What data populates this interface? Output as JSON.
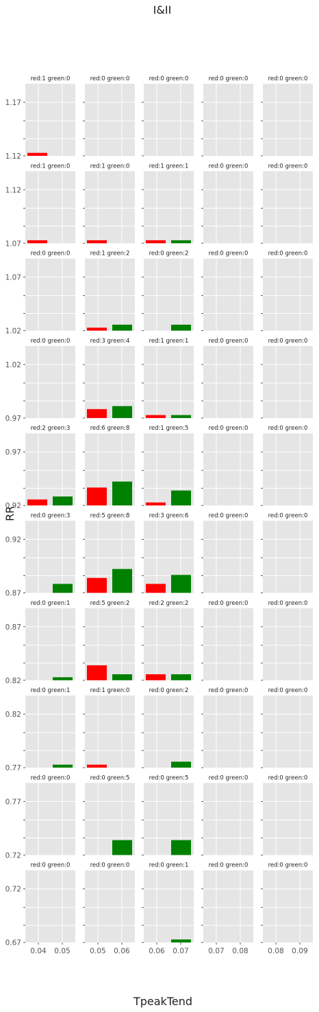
{
  "figure": {
    "title": "I&II",
    "xlabel": "TpeakTend",
    "ylabel": "RR"
  },
  "chart_data": {
    "type": "bar",
    "title": "I&II",
    "xlabel": "TpeakTend",
    "ylabel": "RR",
    "grid": true,
    "colors": {
      "red": "#ff0000",
      "green": "#008000",
      "panel_bg": "#e5e5e5",
      "grid": "#ffffff"
    },
    "columns": [
      {
        "x_ticks": [
          "0.04",
          "0.05"
        ]
      },
      {
        "x_ticks": [
          "0.05",
          "0.06"
        ]
      },
      {
        "x_ticks": [
          "0.06",
          "0.07"
        ]
      },
      {
        "x_ticks": [
          "0.07",
          "0.08"
        ]
      },
      {
        "x_ticks": [
          "0.08",
          "0.09"
        ]
      }
    ],
    "rows": [
      {
        "y_ticks": [
          "1.17",
          "1.12"
        ],
        "panels": [
          {
            "label": "red:1 green:0",
            "red": 1,
            "green": 0
          },
          {
            "label": "red:0 green:0",
            "red": 0,
            "green": 0
          },
          {
            "label": "red:0 green:0",
            "red": 0,
            "green": 0
          },
          {
            "label": "red:0 green:0",
            "red": 0,
            "green": 0
          },
          {
            "label": "red:0 green:0",
            "red": 0,
            "green": 0
          }
        ]
      },
      {
        "y_ticks": [
          "1.12",
          "1.07"
        ],
        "panels": [
          {
            "label": "red:1 green:0",
            "red": 1,
            "green": 0
          },
          {
            "label": "red:1 green:0",
            "red": 1,
            "green": 0
          },
          {
            "label": "red:1 green:1",
            "red": 1,
            "green": 1
          },
          {
            "label": "red:0 green:0",
            "red": 0,
            "green": 0
          },
          {
            "label": "red:0 green:0",
            "red": 0,
            "green": 0
          }
        ]
      },
      {
        "y_ticks": [
          "1.07",
          "1.02"
        ],
        "panels": [
          {
            "label": "red:0 green:0",
            "red": 0,
            "green": 0
          },
          {
            "label": "red:1 green:2",
            "red": 1,
            "green": 2
          },
          {
            "label": "red:0 green:2",
            "red": 0,
            "green": 2
          },
          {
            "label": "red:0 green:0",
            "red": 0,
            "green": 0
          },
          {
            "label": "red:0 green:0",
            "red": 0,
            "green": 0
          }
        ]
      },
      {
        "y_ticks": [
          "1.02",
          "0.97"
        ],
        "panels": [
          {
            "label": "red:0 green:0",
            "red": 0,
            "green": 0
          },
          {
            "label": "red:3 green:4",
            "red": 3,
            "green": 4
          },
          {
            "label": "red:1 green:1",
            "red": 1,
            "green": 1
          },
          {
            "label": "red:0 green:0",
            "red": 0,
            "green": 0
          },
          {
            "label": "red:0 green:0",
            "red": 0,
            "green": 0
          }
        ]
      },
      {
        "y_ticks": [
          "0.97",
          "0.92"
        ],
        "panels": [
          {
            "label": "red:2 green:3",
            "red": 2,
            "green": 3
          },
          {
            "label": "red:6 green:8",
            "red": 6,
            "green": 8
          },
          {
            "label": "red:1 green:5",
            "red": 1,
            "green": 5
          },
          {
            "label": "red:0 green:0",
            "red": 0,
            "green": 0
          },
          {
            "label": "red:0 green:0",
            "red": 0,
            "green": 0
          }
        ]
      },
      {
        "y_ticks": [
          "0.92",
          "0.87"
        ],
        "panels": [
          {
            "label": "red:0 green:3",
            "red": 0,
            "green": 3
          },
          {
            "label": "red:5 green:8",
            "red": 5,
            "green": 8
          },
          {
            "label": "red:3 green:6",
            "red": 3,
            "green": 6
          },
          {
            "label": "red:0 green:0",
            "red": 0,
            "green": 0
          },
          {
            "label": "red:0 green:0",
            "red": 0,
            "green": 0
          }
        ]
      },
      {
        "y_ticks": [
          "0.87",
          "0.82"
        ],
        "panels": [
          {
            "label": "red:0 green:1",
            "red": 0,
            "green": 1
          },
          {
            "label": "red:5 green:2",
            "red": 5,
            "green": 2
          },
          {
            "label": "red:2 green:2",
            "red": 2,
            "green": 2
          },
          {
            "label": "red:0 green:0",
            "red": 0,
            "green": 0
          },
          {
            "label": "red:0 green:0",
            "red": 0,
            "green": 0
          }
        ]
      },
      {
        "y_ticks": [
          "0.82",
          "0.77"
        ],
        "panels": [
          {
            "label": "red:0 green:1",
            "red": 0,
            "green": 1
          },
          {
            "label": "red:1 green:0",
            "red": 1,
            "green": 0
          },
          {
            "label": "red:0 green:2",
            "red": 0,
            "green": 2
          },
          {
            "label": "red:0 green:0",
            "red": 0,
            "green": 0
          },
          {
            "label": "red:0 green:0",
            "red": 0,
            "green": 0
          }
        ]
      },
      {
        "y_ticks": [
          "0.77",
          "0.72"
        ],
        "panels": [
          {
            "label": "red:0 green:0",
            "red": 0,
            "green": 0
          },
          {
            "label": "red:0 green:5",
            "red": 0,
            "green": 5
          },
          {
            "label": "red:0 green:5",
            "red": 0,
            "green": 5
          },
          {
            "label": "red:0 green:0",
            "red": 0,
            "green": 0
          },
          {
            "label": "red:0 green:0",
            "red": 0,
            "green": 0
          }
        ]
      },
      {
        "y_ticks": [
          "0.72",
          "0.67"
        ],
        "panels": [
          {
            "label": "red:0 green:0",
            "red": 0,
            "green": 0
          },
          {
            "label": "red:0 green:0",
            "red": 0,
            "green": 0
          },
          {
            "label": "red:0 green:1",
            "red": 0,
            "green": 1
          },
          {
            "label": "red:0 green:0",
            "red": 0,
            "green": 0
          },
          {
            "label": "red:0 green:0",
            "red": 0,
            "green": 0
          }
        ]
      }
    ]
  }
}
